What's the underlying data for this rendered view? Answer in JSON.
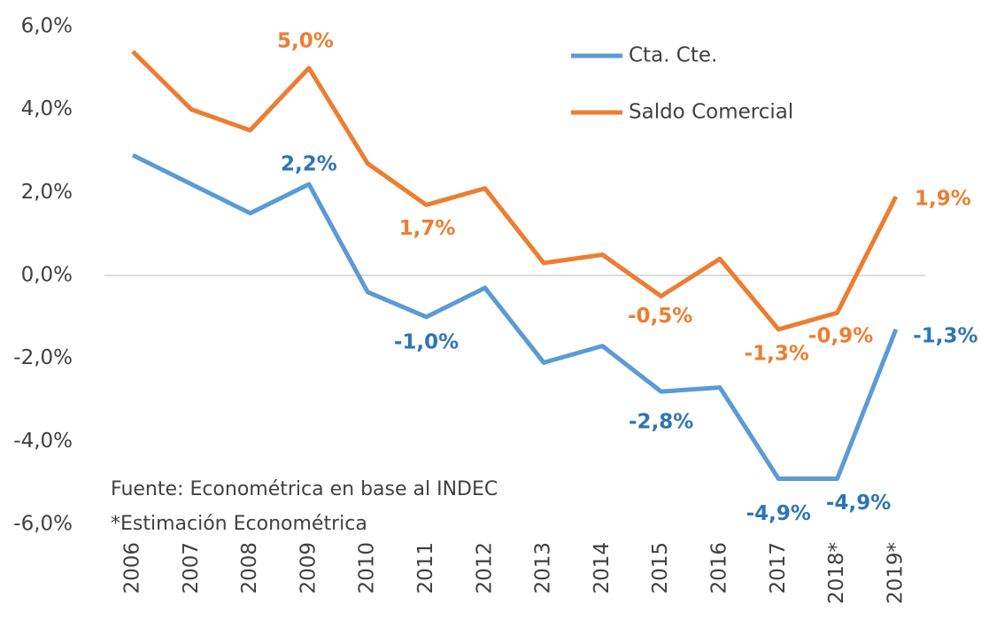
{
  "chart_data": {
    "type": "line",
    "categories": [
      "2006",
      "2007",
      "2008",
      "2009",
      "2010",
      "2011",
      "2012",
      "2013",
      "2014",
      "2015",
      "2016",
      "2017",
      "2018*",
      "2019*"
    ],
    "series": [
      {
        "name": "Cta. Cte.",
        "color": "#5b9bd5",
        "label_color": "#2e75b6",
        "values": [
          2.9,
          2.2,
          1.5,
          2.2,
          -0.4,
          -1.0,
          -0.3,
          -2.1,
          -1.7,
          -2.8,
          -2.7,
          -4.9,
          -4.9,
          -1.3
        ],
        "value_labels": [
          null,
          null,
          null,
          "2,2%",
          null,
          "-1,0%",
          null,
          null,
          null,
          "-2,8%",
          null,
          "-4,9%",
          "-4,9%",
          "-1,3%"
        ]
      },
      {
        "name": "Saldo Comercial",
        "color": "#ed7d31",
        "label_color": "#ed7d31",
        "values": [
          5.4,
          4.0,
          3.5,
          5.0,
          2.7,
          1.7,
          2.1,
          0.3,
          0.5,
          -0.5,
          0.4,
          -1.3,
          -0.9,
          1.9
        ],
        "value_labels": [
          null,
          null,
          null,
          "5,0%",
          null,
          "1,7%",
          null,
          null,
          null,
          "-0,5%",
          null,
          "-1,3%",
          "-0,9%",
          "1,9%"
        ]
      }
    ],
    "ylim": [
      -6,
      6
    ],
    "yticks": [
      {
        "value": -6,
        "label": "-6,0%"
      },
      {
        "value": -4,
        "label": "-4,0%"
      },
      {
        "value": -2,
        "label": "-2,0%"
      },
      {
        "value": 0,
        "label": "0,0%"
      },
      {
        "value": 2,
        "label": "2,0%"
      },
      {
        "value": 4,
        "label": "4,0%"
      },
      {
        "value": 6,
        "label": "6,0%"
      }
    ],
    "grid": false,
    "legend": "top-right",
    "annotations": [
      "Fuente: Econométrica en base al INDEC",
      "*Estimación Econométrica"
    ]
  }
}
